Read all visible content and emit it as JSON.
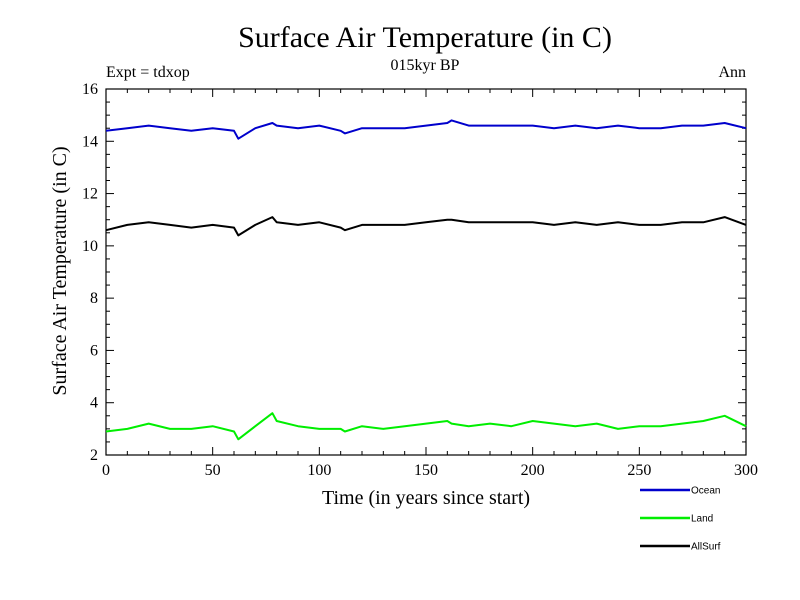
{
  "title": "Surface Air Temperature (in C)",
  "subtitle": "015kyr BP",
  "expt_label": "Expt = tdxop",
  "period_label": "Ann",
  "chart_data": {
    "type": "line",
    "title": "Surface Air Temperature (in C)",
    "subtitle": "015kyr BP",
    "xlabel": "Time (in years since start)",
    "ylabel": "Surface Air Temperature (in C)",
    "xlim": [
      0,
      300
    ],
    "ylim": [
      2,
      16
    ],
    "xticks": [
      0,
      50,
      100,
      150,
      200,
      250,
      300
    ],
    "yticks": [
      2,
      4,
      6,
      8,
      10,
      12,
      14,
      16
    ],
    "grid": false,
    "legend_position": "bottom-right, below plot",
    "x": [
      0,
      10,
      20,
      30,
      40,
      50,
      60,
      62,
      70,
      78,
      80,
      90,
      100,
      110,
      112,
      120,
      130,
      140,
      150,
      160,
      162,
      170,
      180,
      190,
      200,
      210,
      220,
      230,
      240,
      250,
      260,
      270,
      280,
      290,
      300
    ],
    "series": [
      {
        "name": "Ocean",
        "color": "#0000cc",
        "values": [
          14.4,
          14.5,
          14.6,
          14.5,
          14.4,
          14.5,
          14.4,
          14.1,
          14.5,
          14.7,
          14.6,
          14.5,
          14.6,
          14.4,
          14.3,
          14.5,
          14.5,
          14.5,
          14.6,
          14.7,
          14.8,
          14.6,
          14.6,
          14.6,
          14.6,
          14.5,
          14.6,
          14.5,
          14.6,
          14.5,
          14.5,
          14.6,
          14.6,
          14.7,
          14.5
        ]
      },
      {
        "name": "Land",
        "color": "#00ee00",
        "values": [
          2.9,
          3.0,
          3.2,
          3.0,
          3.0,
          3.1,
          2.9,
          2.6,
          3.1,
          3.6,
          3.3,
          3.1,
          3.0,
          3.0,
          2.9,
          3.1,
          3.0,
          3.1,
          3.2,
          3.3,
          3.2,
          3.1,
          3.2,
          3.1,
          3.3,
          3.2,
          3.1,
          3.2,
          3.0,
          3.1,
          3.1,
          3.2,
          3.3,
          3.5,
          3.1
        ]
      },
      {
        "name": "AllSurf",
        "color": "#000000",
        "values": [
          10.6,
          10.8,
          10.9,
          10.8,
          10.7,
          10.8,
          10.7,
          10.4,
          10.8,
          11.1,
          10.9,
          10.8,
          10.9,
          10.7,
          10.6,
          10.8,
          10.8,
          10.8,
          10.9,
          11.0,
          11.0,
          10.9,
          10.9,
          10.9,
          10.9,
          10.8,
          10.9,
          10.8,
          10.9,
          10.8,
          10.8,
          10.9,
          10.9,
          11.1,
          10.8
        ]
      }
    ]
  }
}
